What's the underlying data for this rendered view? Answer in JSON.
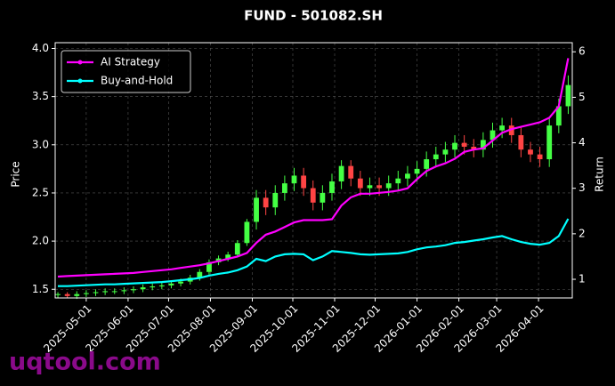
{
  "chart_data": {
    "type": "candlestick-lines",
    "title": "FUND - 501082.SH",
    "ylabel": "Price",
    "y2label": "Return",
    "watermark": "uqtool.com",
    "x": [
      "2025-04-10",
      "2025-04-17",
      "2025-04-24",
      "2025-05-01",
      "2025-05-08",
      "2025-05-15",
      "2025-05-22",
      "2025-05-29",
      "2025-06-05",
      "2025-06-12",
      "2025-06-19",
      "2025-06-26",
      "2025-07-03",
      "2025-07-10",
      "2025-07-17",
      "2025-07-24",
      "2025-07-31",
      "2025-08-07",
      "2025-08-14",
      "2025-08-21",
      "2025-08-28",
      "2025-09-04",
      "2025-09-11",
      "2025-09-18",
      "2025-09-25",
      "2025-10-02",
      "2025-10-09",
      "2025-10-16",
      "2025-10-23",
      "2025-10-30",
      "2025-11-06",
      "2025-11-13",
      "2025-11-20",
      "2025-11-27",
      "2025-12-04",
      "2025-12-11",
      "2025-12-18",
      "2025-12-25",
      "2026-01-01",
      "2026-01-08",
      "2026-01-15",
      "2026-01-22",
      "2026-01-29",
      "2026-02-05",
      "2026-02-12",
      "2026-02-19",
      "2026-02-26",
      "2026-03-05",
      "2026-03-12",
      "2026-03-19",
      "2026-03-26",
      "2026-04-02",
      "2026-04-09",
      "2026-04-16",
      "2026-04-23"
    ],
    "open": [
      1.44,
      1.45,
      1.43,
      1.45,
      1.46,
      1.47,
      1.48,
      1.48,
      1.49,
      1.5,
      1.52,
      1.53,
      1.54,
      1.56,
      1.58,
      1.62,
      1.68,
      1.78,
      1.82,
      1.86,
      1.98,
      2.2,
      2.45,
      2.35,
      2.5,
      2.6,
      2.68,
      2.55,
      2.4,
      2.5,
      2.62,
      2.78,
      2.65,
      2.55,
      2.58,
      2.55,
      2.6,
      2.65,
      2.7,
      2.75,
      2.85,
      2.9,
      2.95,
      3.02,
      2.98,
      2.95,
      3.05,
      3.15,
      3.2,
      3.1,
      2.95,
      2.9,
      2.85,
      3.2,
      3.4
    ],
    "high": [
      1.47,
      1.47,
      1.48,
      1.49,
      1.5,
      1.51,
      1.51,
      1.52,
      1.53,
      1.55,
      1.56,
      1.57,
      1.59,
      1.61,
      1.65,
      1.71,
      1.81,
      1.85,
      1.89,
      2.01,
      2.23,
      2.53,
      2.53,
      2.58,
      2.68,
      2.76,
      2.76,
      2.63,
      2.58,
      2.7,
      2.84,
      2.84,
      2.73,
      2.66,
      2.66,
      2.68,
      2.73,
      2.78,
      2.83,
      2.93,
      2.98,
      3.03,
      3.1,
      3.1,
      3.06,
      3.13,
      3.23,
      3.28,
      3.28,
      3.18,
      3.03,
      2.98,
      3.28,
      3.48,
      3.72
    ],
    "low": [
      1.41,
      1.41,
      1.4,
      1.42,
      1.43,
      1.44,
      1.45,
      1.45,
      1.46,
      1.47,
      1.49,
      1.5,
      1.51,
      1.53,
      1.55,
      1.59,
      1.65,
      1.75,
      1.79,
      1.83,
      1.95,
      2.12,
      2.27,
      2.27,
      2.42,
      2.52,
      2.47,
      2.32,
      2.32,
      2.42,
      2.54,
      2.57,
      2.47,
      2.47,
      2.47,
      2.47,
      2.52,
      2.57,
      2.62,
      2.67,
      2.77,
      2.82,
      2.87,
      2.9,
      2.87,
      2.87,
      2.97,
      3.07,
      3.02,
      2.87,
      2.82,
      2.77,
      2.77,
      3.12,
      3.32
    ],
    "close": [
      1.45,
      1.43,
      1.45,
      1.46,
      1.47,
      1.48,
      1.48,
      1.49,
      1.5,
      1.52,
      1.53,
      1.54,
      1.56,
      1.58,
      1.62,
      1.68,
      1.78,
      1.82,
      1.86,
      1.98,
      2.2,
      2.45,
      2.35,
      2.5,
      2.6,
      2.68,
      2.55,
      2.4,
      2.5,
      2.62,
      2.78,
      2.65,
      2.55,
      2.58,
      2.55,
      2.6,
      2.65,
      2.7,
      2.75,
      2.85,
      2.9,
      2.95,
      3.02,
      2.98,
      2.95,
      3.05,
      3.15,
      3.2,
      3.1,
      2.95,
      2.9,
      2.85,
      3.2,
      3.4,
      3.62
    ],
    "up_color": "#44ff44",
    "down_color": "#ff4444",
    "series": [
      {
        "name": "AI Strategy",
        "color": "#ff00ff",
        "axis": "y2",
        "values": [
          1.06,
          1.07,
          1.08,
          1.09,
          1.1,
          1.11,
          1.12,
          1.13,
          1.14,
          1.16,
          1.18,
          1.2,
          1.22,
          1.25,
          1.28,
          1.31,
          1.35,
          1.4,
          1.45,
          1.5,
          1.58,
          1.8,
          1.98,
          2.05,
          2.15,
          2.25,
          2.3,
          2.3,
          2.3,
          2.32,
          2.62,
          2.8,
          2.88,
          2.88,
          2.9,
          2.92,
          2.95,
          3.0,
          3.2,
          3.38,
          3.48,
          3.55,
          3.65,
          3.8,
          3.85,
          3.88,
          4.05,
          4.22,
          4.3,
          4.35,
          4.4,
          4.45,
          4.55,
          4.8,
          5.86
        ]
      },
      {
        "name": "Buy-and-Hold",
        "color": "#00ffff",
        "axis": "y2",
        "values": [
          0.85,
          0.85,
          0.86,
          0.87,
          0.88,
          0.89,
          0.89,
          0.9,
          0.91,
          0.92,
          0.93,
          0.94,
          0.96,
          0.98,
          1.0,
          1.03,
          1.08,
          1.12,
          1.15,
          1.2,
          1.28,
          1.45,
          1.4,
          1.5,
          1.55,
          1.56,
          1.55,
          1.42,
          1.5,
          1.62,
          1.6,
          1.58,
          1.55,
          1.54,
          1.55,
          1.56,
          1.57,
          1.6,
          1.66,
          1.7,
          1.72,
          1.75,
          1.8,
          1.82,
          1.85,
          1.88,
          1.92,
          1.95,
          1.88,
          1.82,
          1.78,
          1.76,
          1.8,
          1.95,
          2.33
        ]
      }
    ],
    "xlim": [
      "2025-04-08",
      "2026-04-26"
    ],
    "xticks": [
      "2025-05-01",
      "2025-06-01",
      "2025-07-01",
      "2025-08-01",
      "2025-09-01",
      "2025-10-01",
      "2025-11-01",
      "2025-12-01",
      "2026-01-01",
      "2026-02-01",
      "2026-03-01",
      "2026-04-01"
    ],
    "ylim": [
      1.41,
      4.06
    ],
    "yticks": [
      1.5,
      {
        "value": 2,
        "label": "2.0"
      },
      2.5,
      {
        "value": 3,
        "label": "3.0"
      },
      3.5,
      {
        "value": 4,
        "label": "4.0"
      }
    ],
    "y2lim": [
      0.59,
      6.2
    ],
    "y2ticks": [
      1,
      2,
      3,
      4,
      5,
      6
    ],
    "grid": true,
    "legend": "upper left"
  }
}
